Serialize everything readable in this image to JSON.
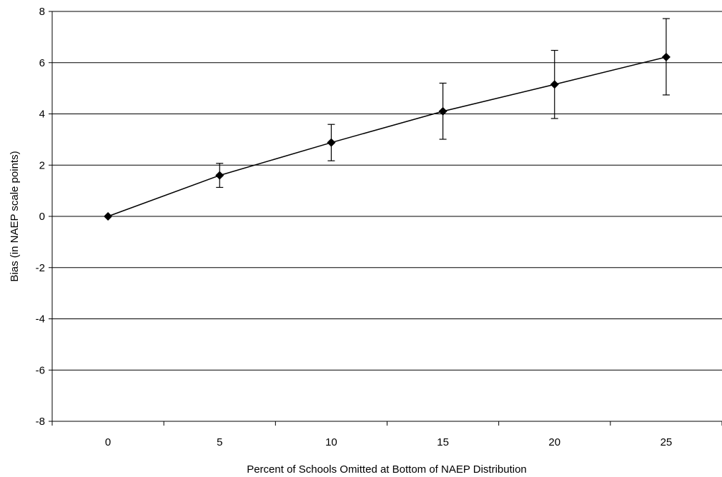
{
  "chart_data": {
    "type": "line",
    "title": "",
    "xlabel": "Percent of Schools Omitted at Bottom of NAEP Distribution",
    "ylabel": "Bias (in NAEP scale points)",
    "categories": [
      "0",
      "5",
      "10",
      "15",
      "20",
      "25"
    ],
    "x": [
      0,
      5,
      10,
      15,
      20,
      25
    ],
    "series": [
      {
        "values": [
          0,
          1.6,
          2.88,
          4.1,
          5.15,
          6.22
        ],
        "error_low": [
          0,
          1.13,
          2.17,
          3.01,
          3.82,
          4.74
        ],
        "error_high": [
          0,
          2.07,
          3.59,
          5.2,
          6.48,
          7.72
        ]
      }
    ],
    "ylim": [
      -8,
      8
    ],
    "yticks": [
      "8",
      "6",
      "4",
      "2",
      "0",
      "-2",
      "-4",
      "-6",
      "-8"
    ],
    "grid": "horizontal",
    "marker": "diamond",
    "line_color": "#000000",
    "legend": "none"
  }
}
